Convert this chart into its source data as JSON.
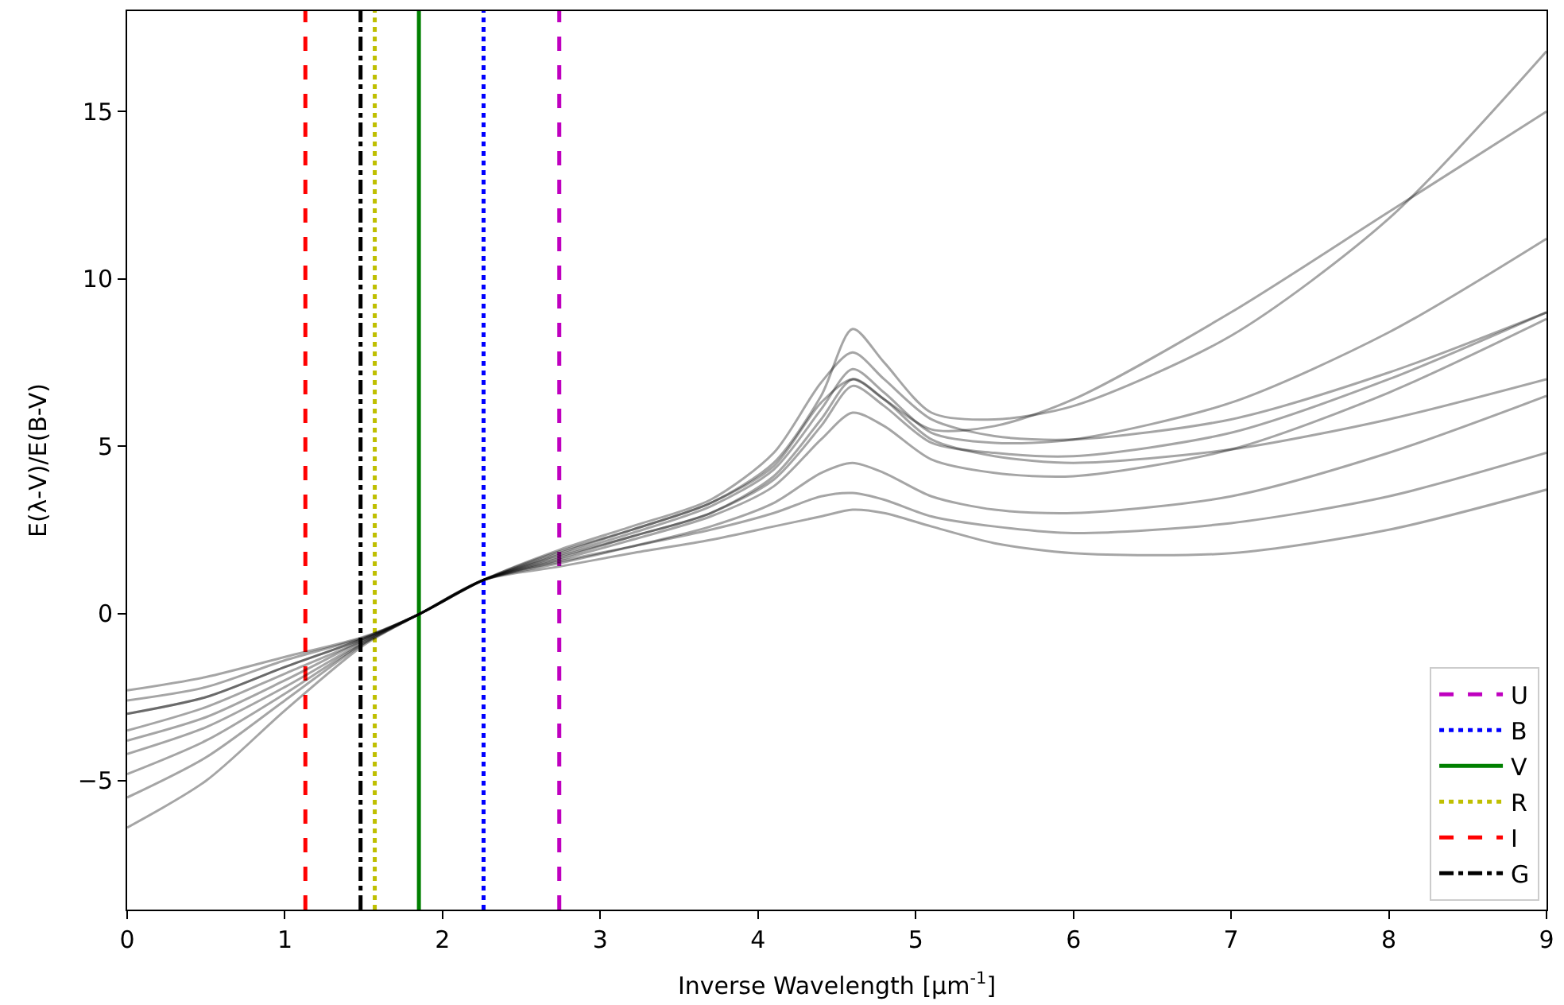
{
  "chart_data": {
    "type": "line",
    "xlabel": "Inverse Wavelength [μm$^{-1}$]",
    "ylabel": "E(λ-V)/E(B-V)",
    "x": [
      0,
      0.5,
      1,
      1.5,
      1.86,
      2.26,
      2.74,
      3.2,
      3.7,
      4.1,
      4.4,
      4.6,
      4.8,
      5.1,
      5.5,
      6,
      7,
      8,
      9
    ],
    "series": [
      {
        "name": "U",
        "color": "#bf00bf",
        "line_style": "dashed",
        "x": [
          2.74,
          2.74
        ],
        "values": [
          -8.85,
          18
        ]
      },
      {
        "name": "B",
        "color": "#0000ff",
        "line_style": "dotted",
        "x": [
          2.26,
          2.26
        ],
        "values": [
          -8.85,
          18
        ]
      },
      {
        "name": "V",
        "color": "#008000",
        "line_style": "solid",
        "x": [
          1.85,
          1.85
        ],
        "values": [
          -8.85,
          18
        ]
      },
      {
        "name": "R",
        "color": "#bfbf00",
        "line_style": "dotted",
        "x": [
          1.57,
          1.57
        ],
        "values": [
          -8.85,
          18
        ]
      },
      {
        "name": "I",
        "color": "#ff0000",
        "line_style": "dashed",
        "x": [
          1.13,
          1.13
        ],
        "values": [
          -8.85,
          18
        ]
      },
      {
        "name": "G",
        "color": "#000000",
        "line_style": "dashdot",
        "x": [
          1.48,
          1.48
        ],
        "values": [
          -8.85,
          18
        ]
      },
      {
        "color": "#000000",
        "values": [
          -3.5,
          -2.8,
          -1.8,
          -0.8,
          0,
          1,
          1.7,
          2.3,
          3.0,
          4.0,
          5.6,
          6.8,
          6.2,
          5.1,
          4.8,
          4.7,
          5.4,
          7.0,
          9.0
        ]
      },
      {
        "color": "#000000",
        "values": [
          -3.0,
          -2.5,
          -1.6,
          -0.75,
          0,
          1,
          1.8,
          2.5,
          3.3,
          4.5,
          6.5,
          8.5,
          7.5,
          6.0,
          5.8,
          6.2,
          8.3,
          11.8,
          16.8
        ]
      },
      {
        "color": "#000000",
        "values": [
          -6.4,
          -5.0,
          -2.9,
          -0.95,
          0,
          1,
          1.4,
          1.8,
          2.2,
          2.6,
          2.9,
          3.1,
          3.0,
          2.6,
          2.1,
          1.8,
          1.8,
          2.5,
          3.7
        ]
      },
      {
        "color": "#000000",
        "values": [
          -5.5,
          -4.3,
          -2.6,
          -0.9,
          0,
          1,
          1.5,
          2.0,
          2.6,
          3.3,
          4.2,
          4.5,
          4.2,
          3.5,
          3.1,
          3.0,
          3.5,
          4.8,
          6.5
        ]
      },
      {
        "color": "#000000",
        "values": [
          -2.3,
          -1.9,
          -1.3,
          -0.7,
          0,
          1,
          1.9,
          2.6,
          3.4,
          4.8,
          6.9,
          7.8,
          7.0,
          5.8,
          5.3,
          5.2,
          5.8,
          7.2,
          9.0
        ]
      },
      {
        "color": "#000000",
        "values": [
          -4.2,
          -3.4,
          -2.2,
          -0.85,
          0,
          1,
          1.6,
          2.2,
          2.9,
          3.8,
          5.2,
          6.0,
          5.6,
          4.6,
          4.2,
          4.1,
          4.9,
          6.6,
          8.8
        ]
      },
      {
        "color": "#000000",
        "values": [
          -3.0,
          -2.5,
          -1.6,
          -0.75,
          0,
          1,
          1.75,
          2.4,
          3.2,
          4.3,
          6.1,
          7.3,
          6.6,
          5.4,
          5.1,
          5.2,
          6.3,
          8.4,
          11.2
        ]
      },
      {
        "color": "#000000",
        "values": [
          -2.6,
          -2.2,
          -1.4,
          -0.72,
          0,
          1,
          1.85,
          2.5,
          3.3,
          4.4,
          6.3,
          7.0,
          6.4,
          5.5,
          5.6,
          6.4,
          9.0,
          12.0,
          15.0
        ]
      },
      {
        "color": "#000000",
        "values": [
          -4.8,
          -3.8,
          -2.4,
          -0.88,
          0,
          1,
          1.55,
          2.0,
          2.5,
          3.0,
          3.5,
          3.6,
          3.4,
          2.9,
          2.6,
          2.4,
          2.7,
          3.5,
          4.8
        ]
      },
      {
        "color": "#000000",
        "values": [
          -3.8,
          -3.1,
          -2.0,
          -0.8,
          0,
          1,
          1.65,
          2.3,
          3.0,
          4.1,
          5.8,
          7.0,
          6.4,
          5.2,
          4.7,
          4.5,
          4.9,
          5.8,
          7.0
        ]
      }
    ],
    "xlim": [
      0,
      9
    ],
    "ylim": [
      -8.85,
      18
    ],
    "xticks": [
      0,
      1,
      2,
      3,
      4,
      5,
      6,
      7,
      8,
      9
    ],
    "yticks": [
      {
        "value": -5,
        "label": "−5"
      },
      0,
      5,
      10,
      15
    ],
    "grid": false,
    "legend": "bottom right",
    "marker": "none",
    "line_style": "solid"
  }
}
